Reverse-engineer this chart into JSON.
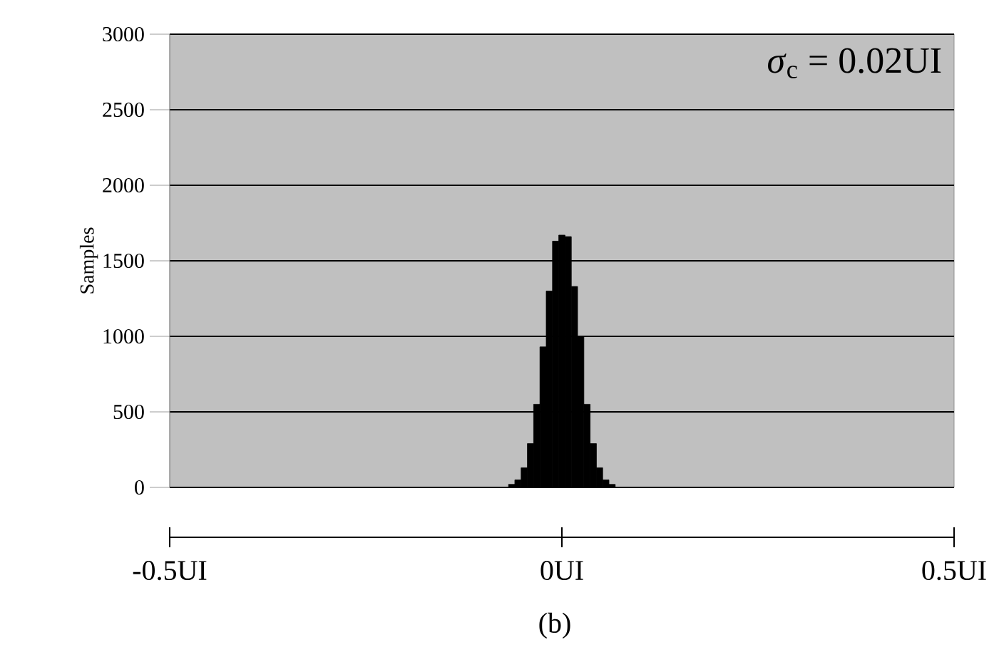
{
  "chart_data": {
    "type": "histogram",
    "ylabel": "Samples",
    "annotations": [
      "*σ*$_{c}$ = 0.02UI",
      "(b)"
    ],
    "bins": [
      -0.068,
      -0.06,
      -0.052,
      -0.044,
      -0.036,
      -0.028,
      -0.02,
      -0.012,
      -0.004,
      0.004,
      0.012,
      0.02,
      0.028,
      0.036,
      0.044,
      0.052,
      0.06,
      0.068
    ],
    "values": [
      20,
      50,
      130,
      290,
      550,
      930,
      1300,
      1630,
      1670,
      1660,
      1330,
      1000,
      550,
      290,
      130,
      50,
      20
    ],
    "color": "#000000",
    "xlim": [
      -0.5,
      0.5
    ],
    "xticks": [
      {
        "value": -0.5,
        "label": "-0.5UI"
      },
      {
        "value": 0,
        "label": "0UI"
      },
      {
        "value": 0.5,
        "label": "0.5UI"
      }
    ],
    "ylim": [
      0,
      3000
    ],
    "yticks": [
      0,
      500,
      1000,
      1500,
      2000,
      2500,
      3000
    ],
    "grid": "y"
  }
}
